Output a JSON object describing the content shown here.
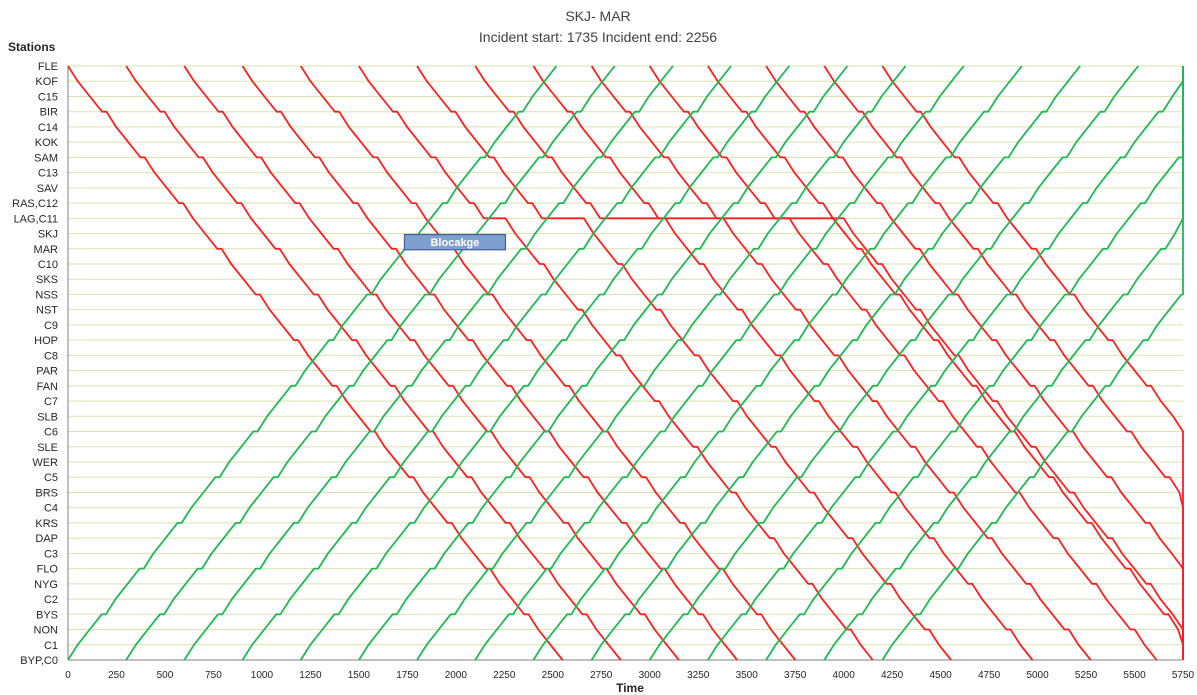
{
  "chart_data": {
    "type": "line",
    "title": "SKJ- MAR",
    "subtitle": "Incident start: 1735 Incident end: 2256",
    "xlabel": "Time",
    "ylabel": "Stations",
    "xlim": [
      0,
      5750
    ],
    "x_ticks": [
      0,
      250,
      500,
      750,
      1000,
      1250,
      1500,
      1750,
      2000,
      2250,
      2500,
      2750,
      3000,
      3250,
      3500,
      3750,
      4000,
      4250,
      4500,
      4750,
      5000,
      5250,
      5500,
      5750
    ],
    "stations": [
      "FLE",
      "KOF",
      "C15",
      "BIR",
      "C14",
      "KOK",
      "SAM",
      "C13",
      "SAV",
      "RAS,C12",
      "LAG,C11",
      "SKJ",
      "MAR",
      "C10",
      "SKS",
      "NSS",
      "NST",
      "C9",
      "HOP",
      "C8",
      "PAR",
      "FAN",
      "C7",
      "SLB",
      "C6",
      "SLE",
      "WER",
      "C5",
      "BRS",
      "C4",
      "KRS",
      "DAP",
      "C3",
      "FLO",
      "NYG",
      "C2",
      "BYS",
      "NON",
      "C1",
      "BYP,C0"
    ],
    "grid": true,
    "colors": {
      "southbound": "#ff1f1f",
      "northbound": "#1db954",
      "blockage_fill": "#7f9fcf",
      "blockage_edge": "#3f5f9f",
      "grid": "#d9e2b0"
    },
    "blockage": {
      "label": "Blocakge",
      "x_start": 1735,
      "x_end": 2256,
      "station_from": "SKJ",
      "station_to": "MAR"
    },
    "series": [
      {
        "direction": "southbound",
        "color": "#ff1f1f",
        "departures": [
          0,
          300,
          600,
          900,
          1200,
          1500,
          1800,
          2100,
          2400,
          2700,
          3000,
          3300,
          3600,
          3900,
          4200
        ],
        "duration": 2450,
        "held": {
          "start": 1535,
          "station": "LAG,C11",
          "release": [
            2256,
            2660,
            3080,
            3380,
            3720,
            4000
          ]
        }
      },
      {
        "direction": "northbound",
        "color": "#1db954",
        "departures": [
          0,
          300,
          600,
          900,
          1200,
          1500,
          1800,
          2100,
          2400,
          2700,
          3000,
          3300,
          3600,
          3900,
          4200
        ],
        "duration": 2420
      }
    ]
  }
}
